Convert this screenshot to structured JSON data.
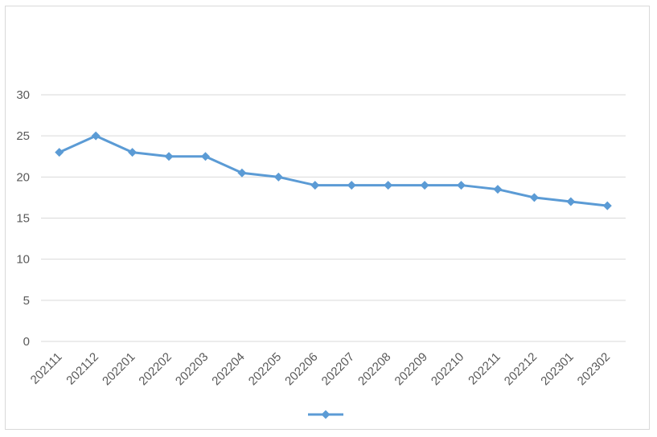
{
  "chart_data": {
    "type": "line",
    "title": "",
    "xlabel": "",
    "ylabel": "",
    "categories": [
      "202111",
      "202112",
      "202201",
      "202202",
      "202203",
      "202204",
      "202205",
      "202206",
      "202207",
      "202208",
      "202209",
      "202210",
      "202211",
      "202212",
      "202301",
      "202302"
    ],
    "series": [
      {
        "name": "",
        "values": [
          23,
          25,
          23,
          22.5,
          22.5,
          20.5,
          20,
          19,
          19,
          19,
          19,
          19,
          18.5,
          17.5,
          17,
          16.5
        ]
      }
    ],
    "ylim": [
      0,
      30
    ],
    "yticks": [
      0,
      5,
      10,
      15,
      20,
      25,
      30
    ],
    "grid": true,
    "legend": "bottom-center",
    "marker": "diamond",
    "line_color": "#5b9bd5"
  }
}
